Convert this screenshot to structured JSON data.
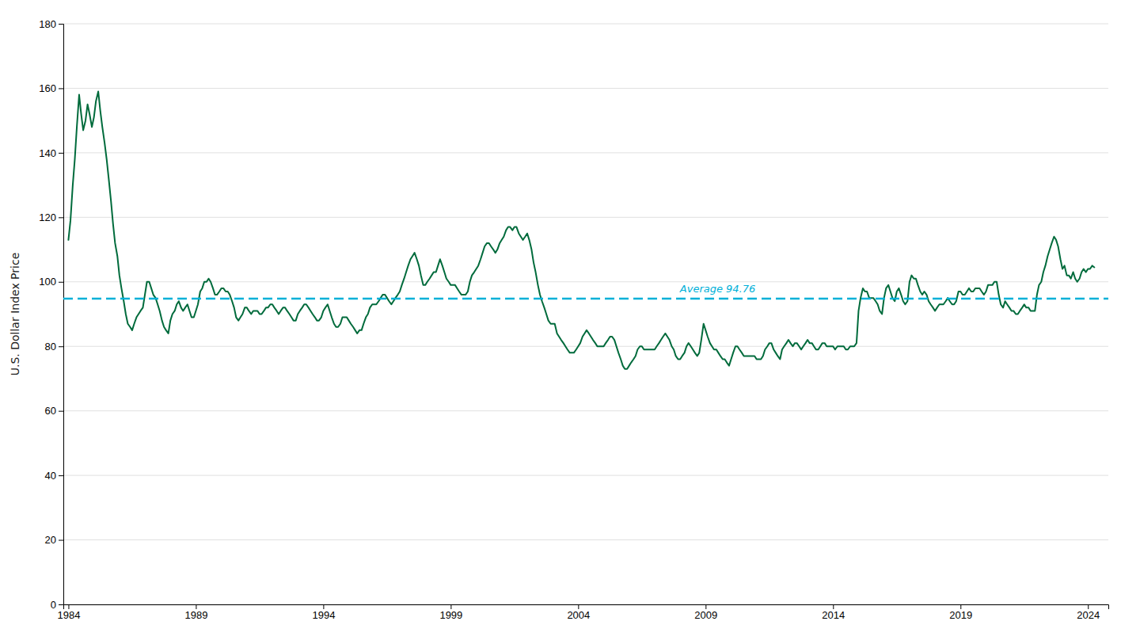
{
  "chart_data": {
    "type": "line",
    "ylabel": "U.S. Dollar Index Price",
    "color": "#006b3c",
    "xlim": [
      1983.8,
      2024.8
    ],
    "xticks": [
      1984,
      1989,
      1994,
      1999,
      2004,
      2009,
      2014,
      2019,
      2024
    ],
    "ylim": [
      0,
      180
    ],
    "yticks": [
      0,
      20,
      40,
      60,
      80,
      100,
      120,
      140,
      160,
      180
    ],
    "grid": true,
    "average": {
      "value": 94.76,
      "label": "Average 94.76",
      "color": "#00b0d8",
      "line_style": "dashed"
    },
    "x": [
      1984.0,
      1984.08,
      1984.17,
      1984.25,
      1984.33,
      1984.42,
      1984.5,
      1984.58,
      1984.67,
      1984.75,
      1984.83,
      1984.92,
      1985.0,
      1985.08,
      1985.17,
      1985.25,
      1985.33,
      1985.42,
      1985.5,
      1985.58,
      1985.67,
      1985.75,
      1985.83,
      1985.92,
      1986.0,
      1986.08,
      1986.17,
      1986.25,
      1986.33,
      1986.42,
      1986.5,
      1986.58,
      1986.67,
      1986.75,
      1986.83,
      1986.92,
      1987.0,
      1987.08,
      1987.17,
      1987.25,
      1987.33,
      1987.42,
      1987.5,
      1987.58,
      1987.67,
      1987.75,
      1987.83,
      1987.92,
      1988.0,
      1988.08,
      1988.17,
      1988.25,
      1988.33,
      1988.42,
      1988.5,
      1988.58,
      1988.67,
      1988.75,
      1988.83,
      1988.92,
      1989.0,
      1989.08,
      1989.17,
      1989.25,
      1989.33,
      1989.42,
      1989.5,
      1989.58,
      1989.67,
      1989.75,
      1989.83,
      1989.92,
      1990.0,
      1990.08,
      1990.17,
      1990.25,
      1990.33,
      1990.42,
      1990.5,
      1990.58,
      1990.67,
      1990.75,
      1990.83,
      1990.92,
      1991.0,
      1991.08,
      1991.17,
      1991.25,
      1991.33,
      1991.42,
      1991.5,
      1991.58,
      1991.67,
      1991.75,
      1991.83,
      1991.92,
      1992.0,
      1992.08,
      1992.17,
      1992.25,
      1992.33,
      1992.42,
      1992.5,
      1992.58,
      1992.67,
      1992.75,
      1992.83,
      1992.92,
      1993.0,
      1993.08,
      1993.17,
      1993.25,
      1993.33,
      1993.42,
      1993.5,
      1993.58,
      1993.67,
      1993.75,
      1993.83,
      1993.92,
      1994.0,
      1994.08,
      1994.17,
      1994.25,
      1994.33,
      1994.42,
      1994.5,
      1994.58,
      1994.67,
      1994.75,
      1994.83,
      1994.92,
      1995.0,
      1995.08,
      1995.17,
      1995.25,
      1995.33,
      1995.42,
      1995.5,
      1995.58,
      1995.67,
      1995.75,
      1995.83,
      1995.92,
      1996.0,
      1996.08,
      1996.17,
      1996.25,
      1996.33,
      1996.42,
      1996.5,
      1996.58,
      1996.67,
      1996.75,
      1996.83,
      1996.92,
      1997.0,
      1997.08,
      1997.17,
      1997.25,
      1997.33,
      1997.42,
      1997.5,
      1997.58,
      1997.67,
      1997.75,
      1997.83,
      1997.92,
      1998.0,
      1998.08,
      1998.17,
      1998.25,
      1998.33,
      1998.42,
      1998.5,
      1998.58,
      1998.67,
      1998.75,
      1998.83,
      1998.92,
      1999.0,
      1999.08,
      1999.17,
      1999.25,
      1999.33,
      1999.42,
      1999.5,
      1999.58,
      1999.67,
      1999.75,
      1999.83,
      1999.92,
      2000.0,
      2000.08,
      2000.17,
      2000.25,
      2000.33,
      2000.42,
      2000.5,
      2000.58,
      2000.67,
      2000.75,
      2000.83,
      2000.92,
      2001.0,
      2001.08,
      2001.17,
      2001.25,
      2001.33,
      2001.42,
      2001.5,
      2001.58,
      2001.67,
      2001.75,
      2001.83,
      2001.92,
      2002.0,
      2002.08,
      2002.17,
      2002.25,
      2002.33,
      2002.42,
      2002.5,
      2002.58,
      2002.67,
      2002.75,
      2002.83,
      2002.92,
      2003.0,
      2003.08,
      2003.17,
      2003.25,
      2003.33,
      2003.42,
      2003.5,
      2003.58,
      2003.67,
      2003.75,
      2003.83,
      2003.92,
      2004.0,
      2004.08,
      2004.17,
      2004.25,
      2004.33,
      2004.42,
      2004.5,
      2004.58,
      2004.67,
      2004.75,
      2004.83,
      2004.92,
      2005.0,
      2005.08,
      2005.17,
      2005.25,
      2005.33,
      2005.42,
      2005.5,
      2005.58,
      2005.67,
      2005.75,
      2005.83,
      2005.92,
      2006.0,
      2006.08,
      2006.17,
      2006.25,
      2006.33,
      2006.42,
      2006.5,
      2006.58,
      2006.67,
      2006.75,
      2006.83,
      2006.92,
      2007.0,
      2007.08,
      2007.17,
      2007.25,
      2007.33,
      2007.42,
      2007.5,
      2007.58,
      2007.67,
      2007.75,
      2007.83,
      2007.92,
      2008.0,
      2008.08,
      2008.17,
      2008.25,
      2008.33,
      2008.42,
      2008.5,
      2008.58,
      2008.67,
      2008.75,
      2008.83,
      2008.92,
      2009.0,
      2009.08,
      2009.17,
      2009.25,
      2009.33,
      2009.42,
      2009.5,
      2009.58,
      2009.67,
      2009.75,
      2009.83,
      2009.92,
      2010.0,
      2010.08,
      2010.17,
      2010.25,
      2010.33,
      2010.42,
      2010.5,
      2010.58,
      2010.67,
      2010.75,
      2010.83,
      2010.92,
      2011.0,
      2011.08,
      2011.17,
      2011.25,
      2011.33,
      2011.42,
      2011.5,
      2011.58,
      2011.67,
      2011.75,
      2011.83,
      2011.92,
      2012.0,
      2012.08,
      2012.17,
      2012.25,
      2012.33,
      2012.42,
      2012.5,
      2012.58,
      2012.67,
      2012.75,
      2012.83,
      2012.92,
      2013.0,
      2013.08,
      2013.17,
      2013.25,
      2013.33,
      2013.42,
      2013.5,
      2013.58,
      2013.67,
      2013.75,
      2013.83,
      2013.92,
      2014.0,
      2014.08,
      2014.17,
      2014.25,
      2014.33,
      2014.42,
      2014.5,
      2014.58,
      2014.67,
      2014.75,
      2014.83,
      2014.92,
      2015.0,
      2015.08,
      2015.17,
      2015.25,
      2015.33,
      2015.42,
      2015.5,
      2015.58,
      2015.67,
      2015.75,
      2015.83,
      2015.92,
      2016.0,
      2016.08,
      2016.17,
      2016.25,
      2016.33,
      2016.42,
      2016.5,
      2016.58,
      2016.67,
      2016.75,
      2016.83,
      2016.92,
      2017.0,
      2017.08,
      2017.17,
      2017.25,
      2017.33,
      2017.42,
      2017.5,
      2017.58,
      2017.67,
      2017.75,
      2017.83,
      2017.92,
      2018.0,
      2018.08,
      2018.17,
      2018.25,
      2018.33,
      2018.42,
      2018.5,
      2018.58,
      2018.67,
      2018.75,
      2018.83,
      2018.92,
      2019.0,
      2019.08,
      2019.17,
      2019.25,
      2019.33,
      2019.42,
      2019.5,
      2019.58,
      2019.67,
      2019.75,
      2019.83,
      2019.92,
      2020.0,
      2020.08,
      2020.17,
      2020.25,
      2020.33,
      2020.42,
      2020.5,
      2020.58,
      2020.67,
      2020.75,
      2020.83,
      2020.92,
      2021.0,
      2021.08,
      2021.17,
      2021.25,
      2021.33,
      2021.42,
      2021.5,
      2021.58,
      2021.67,
      2021.75,
      2021.83,
      2021.92,
      2022.0,
      2022.08,
      2022.17,
      2022.25,
      2022.33,
      2022.42,
      2022.5,
      2022.58,
      2022.67,
      2022.75,
      2022.83,
      2022.92,
      2023.0,
      2023.08,
      2023.17,
      2023.25,
      2023.33,
      2023.42,
      2023.5,
      2023.58,
      2023.67,
      2023.75,
      2023.83,
      2023.92,
      2024.0,
      2024.08,
      2024.17,
      2024.25
    ],
    "values": [
      113.0,
      119.0,
      130.0,
      138.0,
      148.0,
      158.0,
      152.0,
      147.0,
      150.0,
      155.0,
      152.0,
      148.0,
      151.0,
      156.0,
      159.0,
      153.0,
      148.0,
      143.0,
      138.0,
      132.0,
      125.0,
      118.0,
      112.0,
      108.0,
      102.0,
      98.0,
      94.0,
      90.0,
      87.0,
      86.0,
      85.0,
      87.0,
      89.0,
      90.0,
      91.0,
      92.0,
      96.0,
      100.0,
      100.0,
      98.0,
      96.0,
      95.0,
      93.0,
      91.0,
      88.0,
      86.0,
      85.0,
      84.0,
      88.0,
      90.0,
      91.0,
      93.0,
      94.0,
      92.0,
      91.0,
      92.0,
      93.0,
      91.0,
      89.0,
      89.0,
      91.0,
      93.0,
      97.0,
      98.0,
      100.0,
      100.0,
      101.0,
      100.0,
      98.0,
      96.0,
      96.0,
      97.0,
      98.0,
      98.0,
      97.0,
      97.0,
      96.0,
      94.0,
      92.0,
      89.0,
      88.0,
      89.0,
      90.0,
      92.0,
      92.0,
      91.0,
      90.0,
      91.0,
      91.0,
      91.0,
      90.0,
      90.0,
      91.0,
      92.0,
      92.0,
      93.0,
      93.0,
      92.0,
      91.0,
      90.0,
      91.0,
      92.0,
      92.0,
      91.0,
      90.0,
      89.0,
      88.0,
      88.0,
      90.0,
      91.0,
      92.0,
      93.0,
      93.0,
      92.0,
      91.0,
      90.0,
      89.0,
      88.0,
      88.0,
      89.0,
      91.0,
      92.0,
      93.0,
      91.0,
      89.0,
      87.0,
      86.0,
      86.0,
      87.0,
      89.0,
      89.0,
      89.0,
      88.0,
      87.0,
      86.0,
      85.0,
      84.0,
      85.0,
      85.0,
      87.0,
      89.0,
      90.0,
      92.0,
      93.0,
      93.0,
      93.0,
      94.0,
      95.0,
      96.0,
      96.0,
      95.0,
      94.0,
      93.0,
      94.0,
      95.0,
      96.0,
      97.0,
      99.0,
      101.0,
      103.0,
      105.0,
      107.0,
      108.0,
      109.0,
      107.0,
      105.0,
      102.0,
      99.0,
      99.0,
      100.0,
      101.0,
      102.0,
      103.0,
      103.0,
      105.0,
      107.0,
      105.0,
      103.0,
      101.0,
      100.0,
      99.0,
      99.0,
      99.0,
      98.0,
      97.0,
      96.0,
      96.0,
      96.0,
      97.0,
      100.0,
      102.0,
      103.0,
      104.0,
      105.0,
      107.0,
      109.0,
      111.0,
      112.0,
      112.0,
      111.0,
      110.0,
      109.0,
      110.0,
      112.0,
      113.0,
      114.0,
      116.0,
      117.0,
      117.0,
      116.0,
      117.0,
      117.0,
      115.0,
      114.0,
      113.0,
      114.0,
      115.0,
      113.0,
      110.0,
      106.0,
      103.0,
      99.0,
      96.0,
      94.0,
      92.0,
      90.0,
      88.0,
      87.0,
      87.0,
      87.0,
      84.0,
      83.0,
      82.0,
      81.0,
      80.0,
      79.0,
      78.0,
      78.0,
      78.0,
      79.0,
      80.0,
      81.0,
      83.0,
      84.0,
      85.0,
      84.0,
      83.0,
      82.0,
      81.0,
      80.0,
      80.0,
      80.0,
      80.0,
      81.0,
      82.0,
      83.0,
      83.0,
      82.0,
      80.0,
      78.0,
      76.0,
      74.0,
      73.0,
      73.0,
      74.0,
      75.0,
      76.0,
      77.0,
      79.0,
      80.0,
      80.0,
      79.0,
      79.0,
      79.0,
      79.0,
      79.0,
      79.0,
      80.0,
      81.0,
      82.0,
      83.0,
      84.0,
      83.0,
      82.0,
      80.0,
      79.0,
      77.0,
      76.0,
      76.0,
      77.0,
      78.0,
      80.0,
      81.0,
      80.0,
      79.0,
      78.0,
      77.0,
      78.0,
      82.0,
      87.0,
      85.0,
      83.0,
      81.0,
      80.0,
      79.0,
      79.0,
      78.0,
      77.0,
      76.0,
      76.0,
      75.0,
      74.0,
      76.0,
      78.0,
      80.0,
      80.0,
      79.0,
      78.0,
      77.0,
      77.0,
      77.0,
      77.0,
      77.0,
      77.0,
      76.0,
      76.0,
      76.0,
      77.0,
      79.0,
      80.0,
      81.0,
      81.0,
      79.0,
      78.0,
      77.0,
      76.0,
      79.0,
      80.0,
      81.0,
      82.0,
      81.0,
      80.0,
      81.0,
      81.0,
      80.0,
      79.0,
      80.0,
      81.0,
      82.0,
      81.0,
      81.0,
      80.0,
      79.0,
      79.0,
      80.0,
      81.0,
      81.0,
      80.0,
      80.0,
      80.0,
      80.0,
      79.0,
      80.0,
      80.0,
      80.0,
      80.0,
      79.0,
      79.0,
      80.0,
      80.0,
      80.0,
      81.0,
      91.0,
      95.0,
      98.0,
      97.0,
      97.0,
      95.0,
      95.0,
      95.0,
      94.0,
      93.0,
      91.0,
      90.0,
      95.0,
      98.0,
      99.0,
      97.0,
      95.0,
      94.0,
      97.0,
      98.0,
      96.0,
      94.0,
      93.0,
      94.0,
      100.0,
      102.0,
      101.0,
      101.0,
      99.0,
      97.0,
      96.0,
      97.0,
      96.0,
      94.0,
      93.0,
      92.0,
      91.0,
      92.0,
      93.0,
      93.0,
      93.0,
      94.0,
      95.0,
      94.0,
      93.0,
      93.0,
      94.0,
      97.0,
      97.0,
      96.0,
      96.0,
      97.0,
      98.0,
      97.0,
      97.0,
      98.0,
      98.0,
      98.0,
      97.0,
      96.0,
      97.0,
      99.0,
      99.0,
      99.0,
      100.0,
      100.0,
      96.0,
      93.0,
      92.0,
      94.0,
      93.0,
      92.0,
      91.0,
      91.0,
      90.0,
      90.0,
      91.0,
      92.0,
      93.0,
      92.0,
      92.0,
      91.0,
      91.0,
      91.0,
      96.0,
      99.0,
      100.0,
      103.0,
      105.0,
      108.0,
      110.0,
      112.0,
      114.0,
      113.0,
      111.0,
      107.0,
      104.0,
      105.0,
      102.0,
      102.0,
      101.0,
      103.0,
      101.0,
      100.0,
      101.0,
      103.0,
      104.0,
      103.0,
      104.0,
      104.0,
      105.0,
      104.5
    ]
  }
}
